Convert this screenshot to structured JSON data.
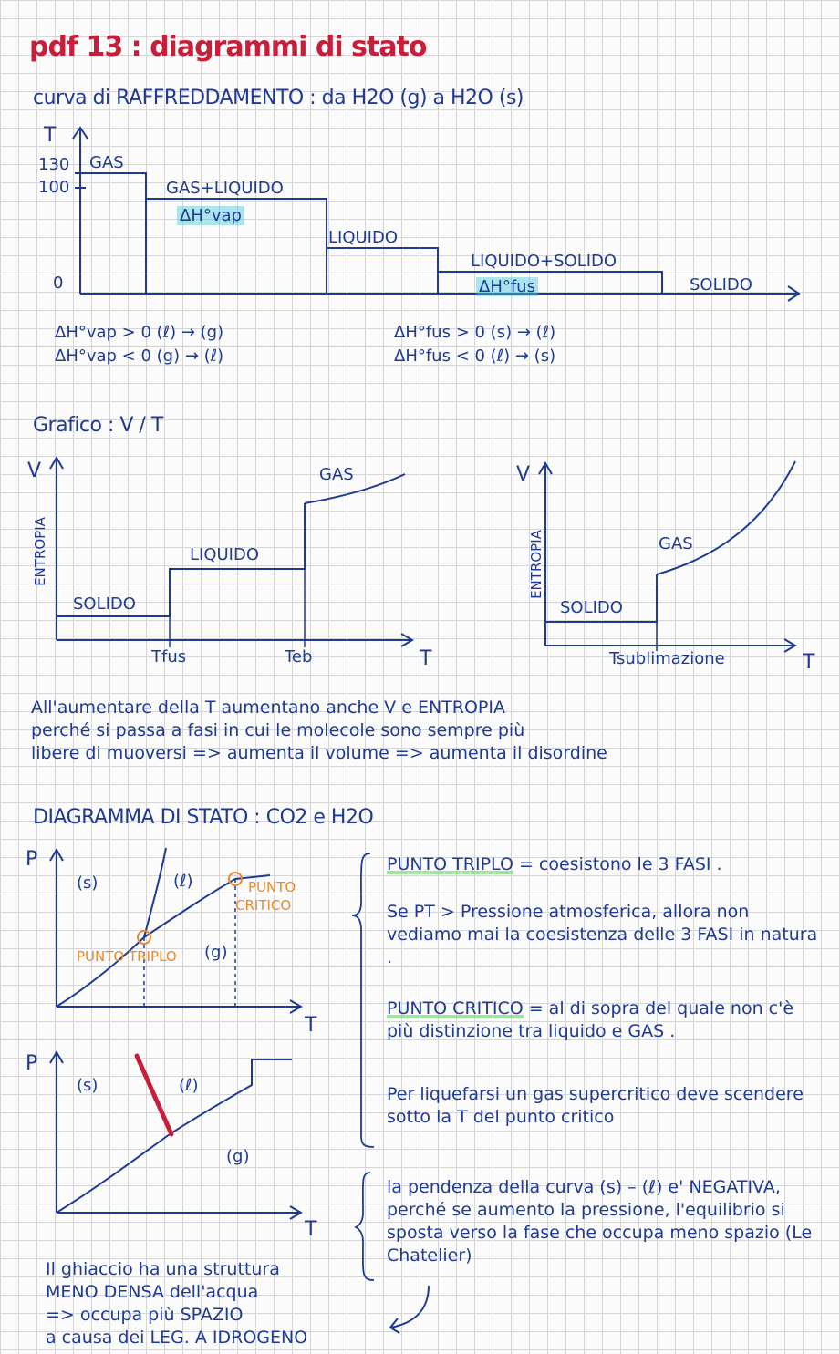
{
  "title": "pdf 13 : diagrammi di stato",
  "cooling": {
    "heading": "curva di RAFFREDDAMENTO : da H2O (g) a H2O (s)",
    "axis_T": "T",
    "tick_130": "130",
    "tick_100": "100",
    "tick_0": "0",
    "seg_gas": "GAS",
    "seg_gas_liq": "GAS+LIQUIDO",
    "dh_vap": "ΔH°vap",
    "seg_liq": "LIQUIDO",
    "seg_liq_sol": "LIQUIDO+SOLIDO",
    "dh_fus": "ΔH°fus",
    "seg_sol": "SOLIDO",
    "eq1": "ΔH°vap > 0   (ℓ) → (g)",
    "eq2": "ΔH°vap < 0   (g) → (ℓ)",
    "eq3": "ΔH°fus > 0   (s) → (ℓ)",
    "eq4": "ΔH°fus < 0   (ℓ) → (s)"
  },
  "vt": {
    "heading": "Grafico : V / T",
    "left": {
      "axis_V": "V",
      "entropia": "ENTROPIA",
      "solido": "SOLIDO",
      "liquido": "LIQUIDO",
      "gas": "GAS",
      "tfus": "Tfus",
      "teb": "Teb",
      "axis_T": "T"
    },
    "right": {
      "axis_V": "V",
      "entropia": "ENTROPIA",
      "solido": "SOLIDO",
      "gas": "GAS",
      "tsub": "Tsublimazione",
      "axis_T": "T"
    },
    "text1": "All'aumentare della T aumentano anche V e ENTROPIA",
    "text2": "perché si passa a fasi in cui le molecole sono sempre più",
    "text3": "libere di muoversi => aumenta il volume => aumenta il disordine"
  },
  "phase": {
    "heading": "DIAGRAMMA DI STATO : CO2 e H2O",
    "co2": {
      "axis_P": "P",
      "s": "(s)",
      "l": "(ℓ)",
      "g": "(g)",
      "punto_critico_1": "PUNTO",
      "punto_critico_2": "CRITICO",
      "punto_triplo": "PUNTO TRIPLO",
      "axis_T": "T"
    },
    "h2o": {
      "axis_P": "P",
      "s": "(s)",
      "l": "(ℓ)",
      "g": "(g)",
      "axis_T": "T"
    },
    "note1_title": "PUNTO TRIPLO",
    "note1_rest": " = coesistono le 3 FASI .",
    "note2": "Se PT > Pressione atmosferica, allora non vediamo mai la coesistenza delle 3 FASI in natura .",
    "note3_title": "PUNTO CRITICO",
    "note3_rest": " = al di sopra del quale non c'è più distinzione tra liquido e GAS .",
    "note4": "Per liquefarsi un gas supercritico deve scendere sotto la T del punto critico",
    "note5": "la pendenza della curva (s) – (ℓ) e' NEGATIVA, perché se aumento la pressione, l'equilibrio si sposta verso la fase che occupa meno spazio (Le Chatelier)",
    "ice1": "Il ghiaccio ha una struttura",
    "ice2": "MENO DENSA dell'acqua",
    "ice3": "=> occupa più SPAZIO",
    "ice4": "a causa dei LEG. A IDROGENO"
  }
}
